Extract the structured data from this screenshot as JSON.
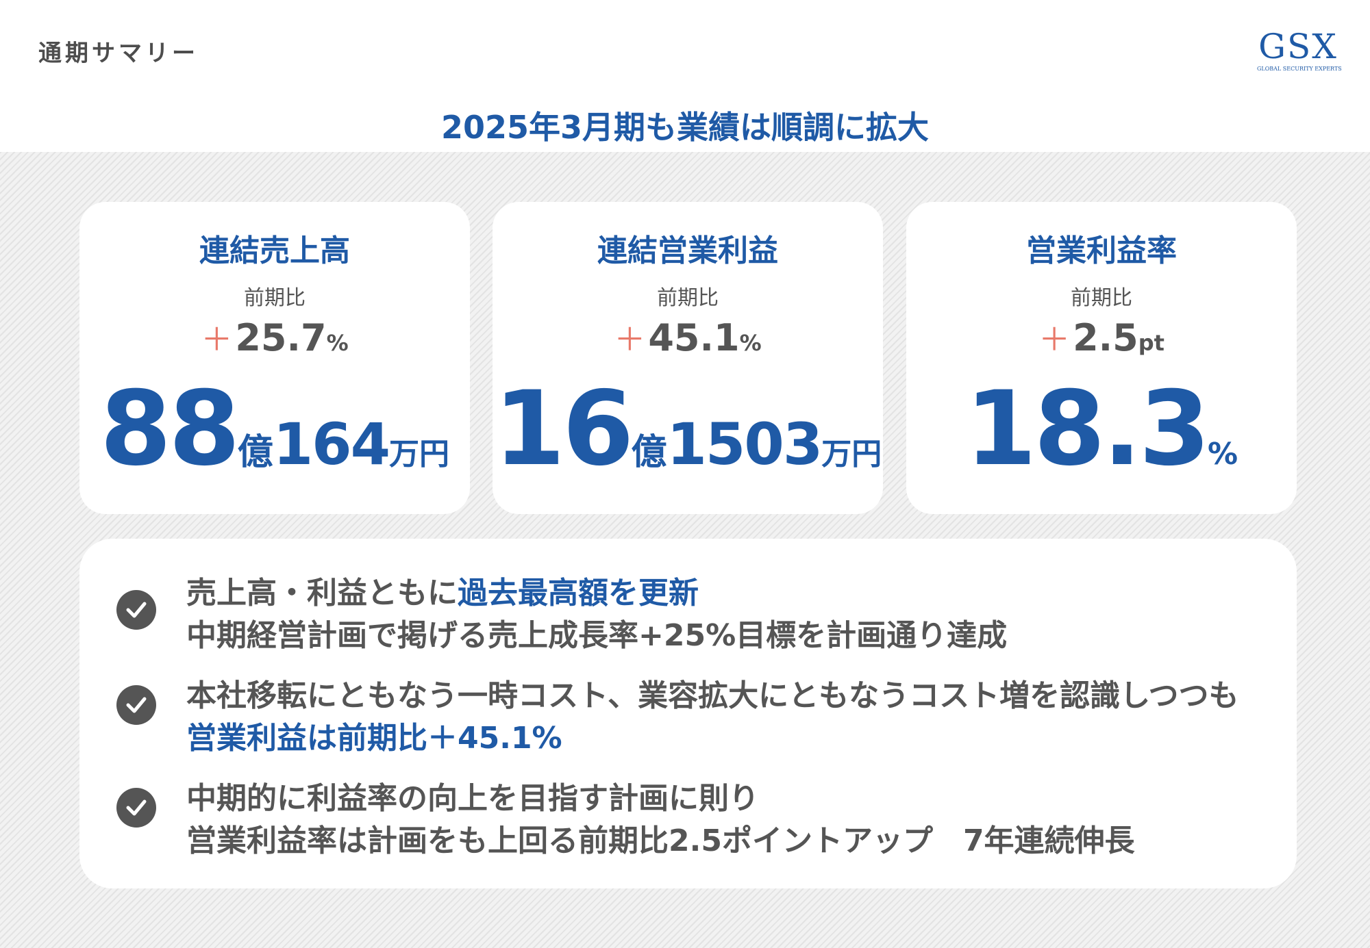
{
  "header": {
    "page_title": "通期サマリー",
    "logo": {
      "main": "GSX",
      "sub": "GLOBAL SECURITY EXPERTS"
    },
    "headline": "2025年3月期も業績は順調に拡大"
  },
  "colors": {
    "accent": "#1f5aa6",
    "text": "#555555",
    "plus": "#e8796a",
    "background": "#ececec"
  },
  "cards": [
    {
      "title": "連結売上高",
      "comparison_label": "前期比",
      "delta": {
        "sign": "＋",
        "value": "25.7",
        "unit": "%"
      },
      "value": {
        "a": "88",
        "b": "億",
        "c": "164",
        "d": "万円"
      }
    },
    {
      "title": "連結営業利益",
      "comparison_label": "前期比",
      "delta": {
        "sign": "＋",
        "value": "45.1",
        "unit": "%"
      },
      "value": {
        "a": "16",
        "b": "億",
        "c": "1503",
        "d": "万円"
      }
    },
    {
      "title": "営業利益率",
      "comparison_label": "前期比",
      "delta": {
        "sign": "＋",
        "value": "2.5",
        "unit": "pt"
      },
      "value": {
        "a": "18.3",
        "d": "%"
      }
    }
  ],
  "bullets": [
    {
      "icon": "check-circle-icon",
      "line1_plain": "売上高・利益ともに",
      "line1_highlight": "過去最高額を更新",
      "line2": "中期経営計画で掲げる売上成長率+25%目標を計画通り達成"
    },
    {
      "icon": "check-circle-icon",
      "line1": "本社移転にともなう一時コスト、業容拡大にともなうコスト増を認識しつつも",
      "line2_highlight": "営業利益は前期比＋45.1%"
    },
    {
      "icon": "check-circle-icon",
      "line1": "中期的に利益率の向上を目指す計画に則り",
      "line2": "営業利益率は計画をも上回る前期比2.5ポイントアップ　7年連続伸長"
    }
  ]
}
